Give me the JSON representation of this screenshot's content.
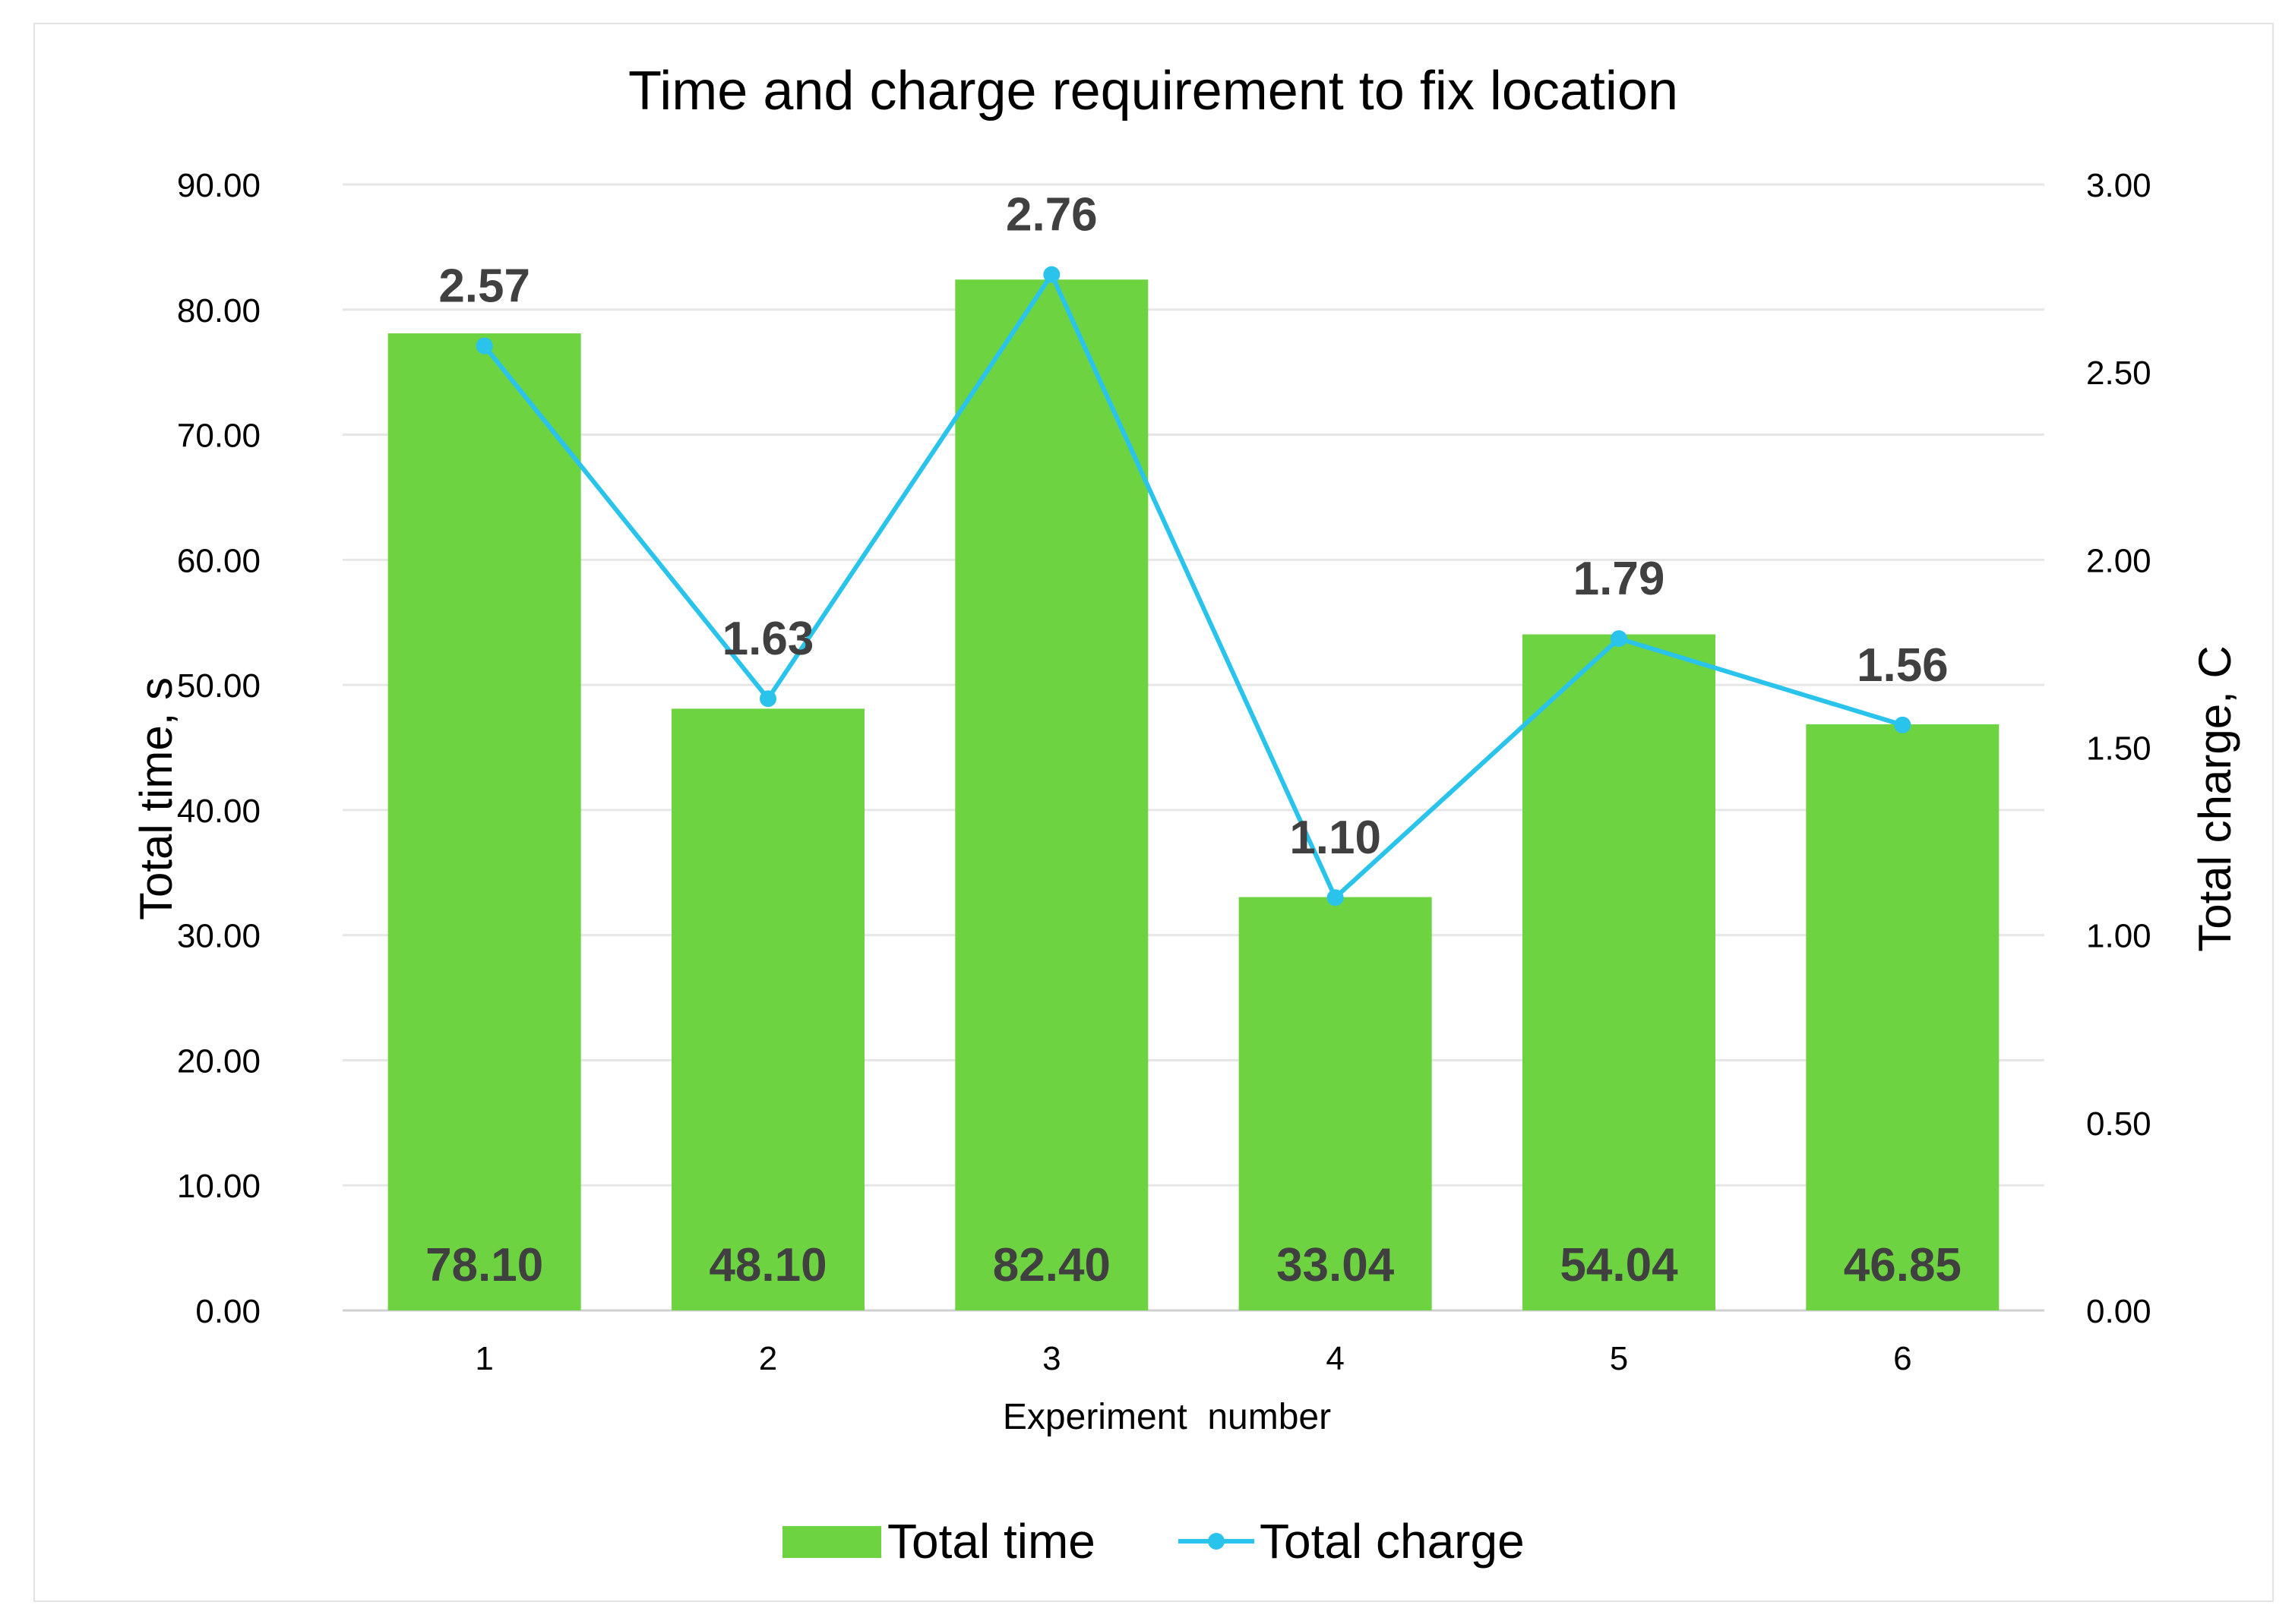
{
  "chart_data": {
    "type": "bar",
    "title": "Time and charge requirement to fix location",
    "xlabel": "Experiment  number",
    "ylabel": "Total time, s",
    "y2label": "Total charge, C",
    "categories": [
      "1",
      "2",
      "3",
      "4",
      "5",
      "6"
    ],
    "ylim": [
      0,
      90
    ],
    "y2lim": [
      0,
      3
    ],
    "y_ticks": [
      "0.00",
      "10.00",
      "20.00",
      "30.00",
      "40.00",
      "50.00",
      "60.00",
      "70.00",
      "80.00",
      "90.00"
    ],
    "y2_ticks": [
      "0.00",
      "0.50",
      "1.00",
      "1.50",
      "2.00",
      "2.50",
      "3.00"
    ],
    "grid": true,
    "legend_position": "bottom",
    "series": [
      {
        "name": "Total time",
        "type": "bar",
        "axis": "left",
        "color": "#6dd340",
        "values": [
          78.1,
          48.1,
          82.4,
          33.04,
          54.04,
          46.85
        ],
        "labels": [
          "78.10",
          "48.10",
          "82.40",
          "33.04",
          "54.04",
          "46.85"
        ]
      },
      {
        "name": "Total charge",
        "type": "line",
        "axis": "right",
        "color": "#29c3ec",
        "values": [
          2.57,
          1.63,
          2.76,
          1.1,
          1.79,
          1.56
        ],
        "labels": [
          "2.57",
          "1.63",
          "2.76",
          "1.10",
          "1.79",
          "1.56"
        ]
      }
    ]
  }
}
